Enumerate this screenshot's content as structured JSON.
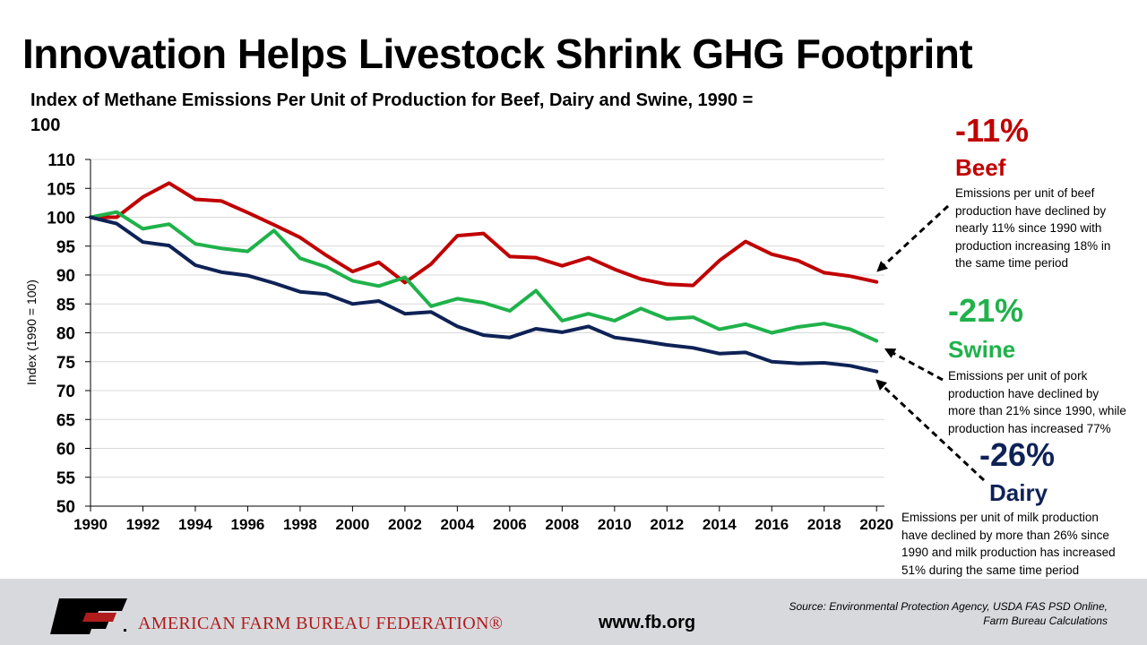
{
  "title": "Innovation Helps Livestock Shrink GHG Footprint",
  "subtitle": "Index of Methane Emissions Per Unit of Production for Beef, Dairy and Swine, 1990 = 100",
  "colors": {
    "beef": "#c00000",
    "swine": "#1fb24a",
    "dairy": "#0e2256",
    "arrow": "#000000",
    "footer": "#d7d9dd",
    "brand": "#b01c1c"
  },
  "chart_data": {
    "type": "line",
    "ylabel": "Index (1990 = 100)",
    "xlabel": "",
    "ylim": [
      50,
      110
    ],
    "yticks": [
      50,
      55,
      60,
      65,
      70,
      75,
      80,
      85,
      90,
      95,
      100,
      105,
      110
    ],
    "xlim": [
      1990,
      2020.3
    ],
    "xticks": [
      1990,
      1992,
      1994,
      1996,
      1998,
      2000,
      2002,
      2004,
      2006,
      2008,
      2010,
      2012,
      2014,
      2016,
      2018,
      2020
    ],
    "grid": "horizontal",
    "x": [
      1990,
      1991,
      1992,
      1993,
      1994,
      1995,
      1996,
      1997,
      1998,
      1999,
      2000,
      2001,
      2002,
      2003,
      2004,
      2005,
      2006,
      2007,
      2008,
      2009,
      2010,
      2011,
      2012,
      2013,
      2014,
      2015,
      2016,
      2017,
      2018,
      2019,
      2020
    ],
    "series": [
      {
        "key": "beef",
        "color": "#c00000",
        "values": [
          100,
          100,
          103.5,
          105.9,
          103.1,
          102.8,
          100.8,
          98.7,
          96.5,
          93.4,
          90.6,
          92.2,
          88.7,
          91.9,
          96.8,
          97.2,
          93.2,
          93.0,
          91.6,
          93.0,
          91.0,
          89.3,
          88.4,
          88.2,
          92.5,
          95.8,
          93.6,
          92.5,
          90.4,
          89.8,
          88.8
        ]
      },
      {
        "key": "swine",
        "color": "#1fb24a",
        "values": [
          100,
          100.9,
          98.0,
          98.8,
          95.4,
          94.6,
          94.1,
          97.7,
          92.9,
          91.4,
          89.0,
          88.1,
          89.6,
          84.6,
          85.9,
          85.2,
          83.8,
          87.3,
          82.1,
          83.3,
          82.1,
          84.2,
          82.4,
          82.7,
          80.6,
          81.5,
          80.0,
          81.0,
          81.6,
          80.6,
          78.6
        ]
      },
      {
        "key": "dairy",
        "color": "#0e2256",
        "values": [
          100,
          98.9,
          95.7,
          95.1,
          91.7,
          90.5,
          89.9,
          88.6,
          87.1,
          86.7,
          85.0,
          85.5,
          83.3,
          83.6,
          81.1,
          79.6,
          79.2,
          80.7,
          80.1,
          81.1,
          79.2,
          78.6,
          77.9,
          77.4,
          76.4,
          76.6,
          75.0,
          74.7,
          74.8,
          74.3,
          73.3
        ]
      }
    ],
    "annotations": {
      "beef": {
        "percent": "-11%",
        "label": "Beef",
        "note": [
          "Emissions per unit of beef",
          "production have declined by",
          "nearly 11% since 1990 with",
          "production increasing 18% in",
          "the same time period"
        ]
      },
      "swine": {
        "percent": "-21%",
        "label": "Swine",
        "note": [
          "Emissions per unit of pork",
          "production have declined by",
          "more than 21% since 1990, while",
          "production has increased 77%"
        ]
      },
      "dairy": {
        "percent": "-26%",
        "label": "Dairy",
        "note": [
          "Emissions per unit of milk production",
          "have declined by more than 26% since",
          "1990 and milk production has increased",
          "51% during the same time period"
        ]
      }
    }
  },
  "footer": {
    "logo_text": "FB",
    "organization": "AMERICAN FARM BUREAU FEDERATION®",
    "website": "www.fb.org",
    "source_lines": [
      "Source: Environmental Protection Agency, USDA FAS PSD Online,",
      "Farm Bureau Calculations"
    ]
  }
}
